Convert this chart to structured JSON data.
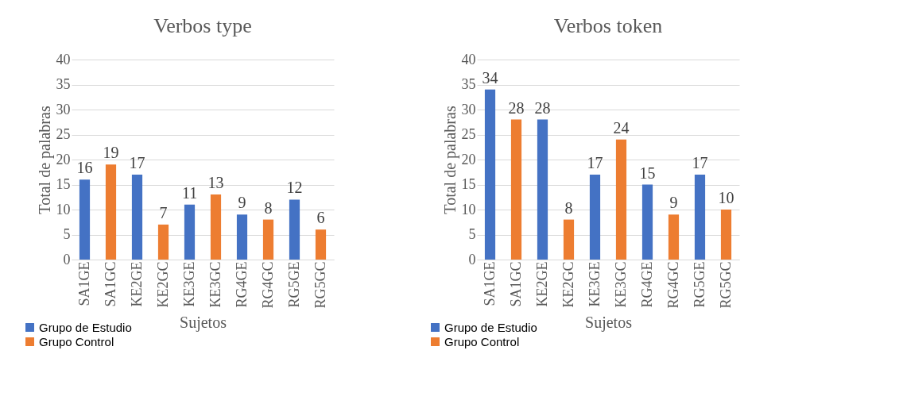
{
  "chart_data": [
    {
      "type": "bar",
      "title": "Verbos type",
      "xlabel": "Sujetos",
      "ylabel": "Total de palabras",
      "categories": [
        "SA1GE",
        "SA1GC",
        "KE2GE",
        "KE2GC",
        "KE3GE",
        "KE3GC",
        "RG4GE",
        "RG4GC",
        "RG5GE",
        "RG5GC"
      ],
      "series": [
        {
          "name": "Grupo de Estudio",
          "color": "#4472c4",
          "values": [
            16,
            null,
            17,
            null,
            11,
            null,
            9,
            null,
            12,
            null
          ]
        },
        {
          "name": "Grupo Control",
          "color": "#ed7d31",
          "values": [
            null,
            19,
            null,
            7,
            null,
            13,
            null,
            8,
            null,
            6
          ]
        }
      ],
      "ylim": [
        0,
        40
      ],
      "yticks": [
        0,
        5,
        10,
        15,
        20,
        25,
        30,
        35,
        40
      ],
      "grid": "y",
      "data_labels": true,
      "legend": "bottom left"
    },
    {
      "type": "bar",
      "title": "Verbos token",
      "xlabel": "Sujetos",
      "ylabel": "Total de palabras",
      "categories": [
        "SA1GE",
        "SA1GC",
        "KE2GE",
        "KE2GC",
        "KE3GE",
        "KE3GC",
        "RG4GE",
        "RG4GC",
        "RG5GE",
        "RG5GC"
      ],
      "series": [
        {
          "name": "Grupo de Estudio",
          "color": "#4472c4",
          "values": [
            34,
            null,
            28,
            null,
            17,
            null,
            15,
            null,
            17,
            null
          ]
        },
        {
          "name": "Grupo Control",
          "color": "#ed7d31",
          "values": [
            null,
            28,
            null,
            8,
            null,
            24,
            null,
            9,
            null,
            10
          ]
        }
      ],
      "ylim": [
        0,
        40
      ],
      "yticks": [
        0,
        5,
        10,
        15,
        20,
        25,
        30,
        35,
        40
      ],
      "grid": "y",
      "data_labels": true,
      "legend": "bottom left"
    }
  ]
}
